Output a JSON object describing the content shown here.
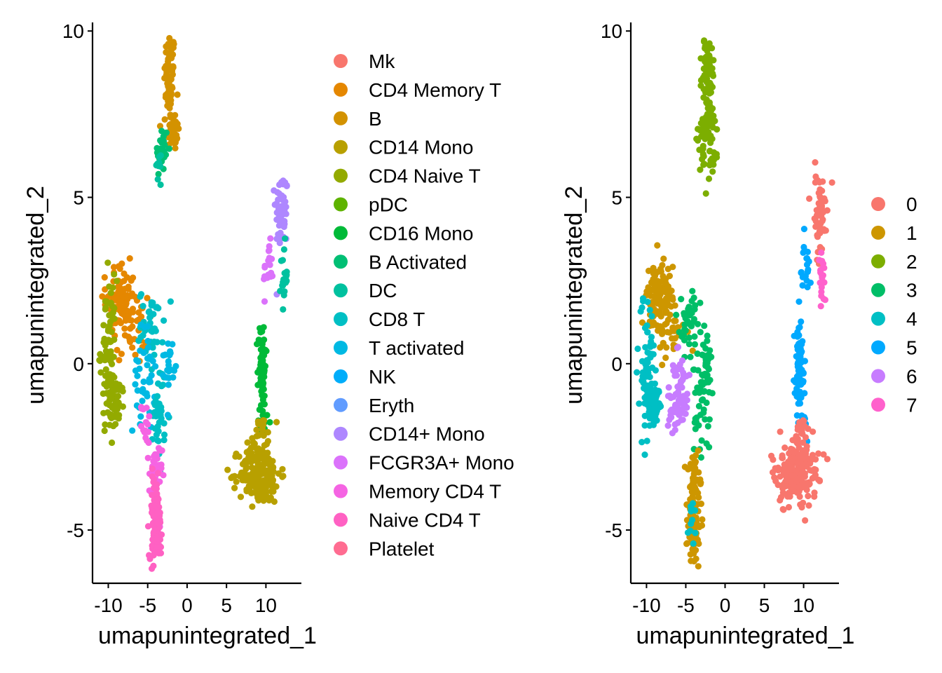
{
  "chart_data": [
    {
      "type": "scatter",
      "xlabel": "umapunintegrated_1",
      "ylabel": "umapunintegrated_2",
      "xlim": [
        -12,
        14.5
      ],
      "ylim": [
        -6.6,
        10.3
      ],
      "xticks": [
        -10,
        -5,
        0,
        5,
        10
      ],
      "yticks": [
        -5,
        0,
        5,
        10
      ],
      "xtick_labels": [
        "-10",
        "-5",
        "0",
        "5",
        "10"
      ],
      "ytick_labels": [
        "-5",
        "0",
        "5",
        "10"
      ],
      "legend_position": "right",
      "legend": [
        {
          "label": "Mk",
          "color": "#F8766D"
        },
        {
          "label": "CD4 Memory T",
          "color": "#E58700"
        },
        {
          "label": "B",
          "color": "#D39200"
        },
        {
          "label": "CD14 Mono",
          "color": "#B8A000"
        },
        {
          "label": "CD4 Naive T",
          "color": "#93AA00"
        },
        {
          "label": "pDC",
          "color": "#5EB300"
        },
        {
          "label": "CD16 Mono",
          "color": "#00BA38"
        },
        {
          "label": "B Activated",
          "color": "#00BF74"
        },
        {
          "label": "DC",
          "color": "#00C19F"
        },
        {
          "label": "CD8 T",
          "color": "#00BFC4"
        },
        {
          "label": "T activated",
          "color": "#00B9E3"
        },
        {
          "label": "NK",
          "color": "#00ADFA"
        },
        {
          "label": "Eryth",
          "color": "#619CFF"
        },
        {
          "label": "CD14+ Mono",
          "color": "#AE87FF"
        },
        {
          "label": "FCGR3A+ Mono",
          "color": "#DB72FB"
        },
        {
          "label": "Memory CD4 T",
          "color": "#F564E3"
        },
        {
          "label": "Naive CD4 T",
          "color": "#FF61C3"
        },
        {
          "label": "Platelet",
          "color": "#FF6C91"
        }
      ],
      "clusters": [
        {
          "color": "#D39200",
          "cx": -2.2,
          "cy": 8.6,
          "sx": 0.35,
          "sy": 0.7,
          "n": 70
        },
        {
          "color": "#D39200",
          "cx": -1.8,
          "cy": 7.0,
          "sx": 0.4,
          "sy": 0.3,
          "n": 40
        },
        {
          "color": "#00BF74",
          "cx": -3.2,
          "cy": 6.4,
          "sx": 0.4,
          "sy": 0.4,
          "n": 25
        },
        {
          "color": "#00C19F",
          "cx": -3.6,
          "cy": 5.9,
          "sx": 0.3,
          "sy": 0.3,
          "n": 10
        },
        {
          "color": "#AE87FF",
          "cx": 12.0,
          "cy": 4.6,
          "sx": 0.4,
          "sy": 0.6,
          "n": 60
        },
        {
          "color": "#DB72FB",
          "cx": 10.3,
          "cy": 2.8,
          "sx": 0.3,
          "sy": 0.4,
          "n": 20
        },
        {
          "color": "#00C19F",
          "cx": 12.3,
          "cy": 2.6,
          "sx": 0.2,
          "sy": 0.5,
          "n": 20
        },
        {
          "color": "#E58700",
          "cx": -8.5,
          "cy": 2.0,
          "sx": 0.9,
          "sy": 0.5,
          "n": 90
        },
        {
          "color": "#E58700",
          "cx": -7.0,
          "cy": 1.0,
          "sx": 1.0,
          "sy": 0.5,
          "n": 40
        },
        {
          "color": "#93AA00",
          "cx": -10.0,
          "cy": 0.5,
          "sx": 0.5,
          "sy": 1.0,
          "n": 70
        },
        {
          "color": "#93AA00",
          "cx": -9.2,
          "cy": -1.2,
          "sx": 0.6,
          "sy": 0.4,
          "n": 60
        },
        {
          "color": "#00BFC4",
          "cx": -4.5,
          "cy": 1.2,
          "sx": 0.8,
          "sy": 0.5,
          "n": 40
        },
        {
          "color": "#00B9E3",
          "cx": -5.5,
          "cy": -0.5,
          "sx": 0.7,
          "sy": 0.8,
          "n": 40
        },
        {
          "color": "#00BFC4",
          "cx": -3.5,
          "cy": -1.5,
          "sx": 0.4,
          "sy": 0.8,
          "n": 40
        },
        {
          "color": "#00B9E3",
          "cx": -2.3,
          "cy": 0.0,
          "sx": 0.3,
          "sy": 0.4,
          "n": 20
        },
        {
          "color": "#F564E3",
          "cx": -5.2,
          "cy": -1.8,
          "sx": 0.3,
          "sy": 0.3,
          "n": 15
        },
        {
          "color": "#F564E3",
          "cx": -4.0,
          "cy": -3.4,
          "sx": 0.4,
          "sy": 0.5,
          "n": 40
        },
        {
          "color": "#FF61C3",
          "cx": -4.0,
          "cy": -4.6,
          "sx": 0.4,
          "sy": 0.6,
          "n": 80
        },
        {
          "color": "#FF61C3",
          "cx": -4.0,
          "cy": -5.5,
          "sx": 0.3,
          "sy": 0.3,
          "n": 25
        },
        {
          "color": "#00BA38",
          "cx": 9.5,
          "cy": 0.0,
          "sx": 0.25,
          "sy": 0.6,
          "n": 70
        },
        {
          "color": "#00BA38",
          "cx": 9.8,
          "cy": -1.7,
          "sx": 0.4,
          "sy": 0.4,
          "n": 15
        },
        {
          "color": "#B8A000",
          "cx": 9.2,
          "cy": -3.3,
          "sx": 1.3,
          "sy": 0.45,
          "n": 200
        },
        {
          "color": "#B8A000",
          "cx": 9.6,
          "cy": -2.2,
          "sx": 0.5,
          "sy": 0.3,
          "n": 20
        }
      ]
    },
    {
      "type": "scatter",
      "xlabel": "umapunintegrated_1",
      "ylabel": "umapunintegrated_2",
      "xlim": [
        -12,
        14.5
      ],
      "ylim": [
        -6.6,
        10.3
      ],
      "xticks": [
        -10,
        -5,
        0,
        5,
        10
      ],
      "yticks": [
        -5,
        0,
        5,
        10
      ],
      "xtick_labels": [
        "-10",
        "-5",
        "0",
        "5",
        "10"
      ],
      "ytick_labels": [
        "-5",
        "0",
        "5",
        "10"
      ],
      "legend_position": "right",
      "legend": [
        {
          "label": "0",
          "color": "#F8766D"
        },
        {
          "label": "1",
          "color": "#CD9600"
        },
        {
          "label": "2",
          "color": "#7CAE00"
        },
        {
          "label": "3",
          "color": "#00BE67"
        },
        {
          "label": "4",
          "color": "#00BFC4"
        },
        {
          "label": "5",
          "color": "#00A9FF"
        },
        {
          "label": "6",
          "color": "#C77CFF"
        },
        {
          "label": "7",
          "color": "#FF61CC"
        }
      ],
      "clusters": [
        {
          "color": "#7CAE00",
          "cx": -2.2,
          "cy": 8.6,
          "sx": 0.35,
          "sy": 0.7,
          "n": 80
        },
        {
          "color": "#7CAE00",
          "cx": -2.4,
          "cy": 6.6,
          "sx": 0.6,
          "sy": 0.5,
          "n": 60
        },
        {
          "color": "#F8766D",
          "cx": 12.0,
          "cy": 4.6,
          "sx": 0.4,
          "sy": 0.6,
          "n": 60
        },
        {
          "color": "#00A9FF",
          "cx": 10.3,
          "cy": 2.8,
          "sx": 0.3,
          "sy": 0.4,
          "n": 20
        },
        {
          "color": "#FF61CC",
          "cx": 12.3,
          "cy": 2.6,
          "sx": 0.2,
          "sy": 0.5,
          "n": 20
        },
        {
          "color": "#CD9600",
          "cx": -8.5,
          "cy": 2.0,
          "sx": 0.9,
          "sy": 0.5,
          "n": 100
        },
        {
          "color": "#CD9600",
          "cx": -7.0,
          "cy": 1.0,
          "sx": 1.0,
          "sy": 0.5,
          "n": 40
        },
        {
          "color": "#00BFC4",
          "cx": -10.0,
          "cy": 0.0,
          "sx": 0.5,
          "sy": 1.0,
          "n": 70
        },
        {
          "color": "#00BFC4",
          "cx": -9.2,
          "cy": -1.2,
          "sx": 0.6,
          "sy": 0.4,
          "n": 60
        },
        {
          "color": "#00BE67",
          "cx": -4.5,
          "cy": 1.2,
          "sx": 0.8,
          "sy": 0.5,
          "n": 40
        },
        {
          "color": "#00BE67",
          "cx": -3.0,
          "cy": -1.0,
          "sx": 0.6,
          "sy": 0.9,
          "n": 50
        },
        {
          "color": "#00BE67",
          "cx": -2.3,
          "cy": 0.0,
          "sx": 0.3,
          "sy": 0.4,
          "n": 20
        },
        {
          "color": "#C77CFF",
          "cx": -6.0,
          "cy": -1.0,
          "sx": 0.9,
          "sy": 0.6,
          "n": 70
        },
        {
          "color": "#CD9600",
          "cx": -4.0,
          "cy": -3.6,
          "sx": 0.4,
          "sy": 0.6,
          "n": 50
        },
        {
          "color": "#CD9600",
          "cx": -4.0,
          "cy": -5.0,
          "sx": 0.4,
          "sy": 0.5,
          "n": 70
        },
        {
          "color": "#00BFC4",
          "cx": -4.3,
          "cy": -4.6,
          "sx": 0.3,
          "sy": 0.5,
          "n": 12
        },
        {
          "color": "#00A9FF",
          "cx": 9.5,
          "cy": 0.0,
          "sx": 0.25,
          "sy": 0.6,
          "n": 70
        },
        {
          "color": "#00A9FF",
          "cx": 9.8,
          "cy": -1.7,
          "sx": 0.4,
          "sy": 0.4,
          "n": 15
        },
        {
          "color": "#F8766D",
          "cx": 9.2,
          "cy": -3.3,
          "sx": 1.3,
          "sy": 0.45,
          "n": 200
        },
        {
          "color": "#F8766D",
          "cx": 9.6,
          "cy": -2.2,
          "sx": 0.5,
          "sy": 0.3,
          "n": 20
        }
      ]
    }
  ]
}
